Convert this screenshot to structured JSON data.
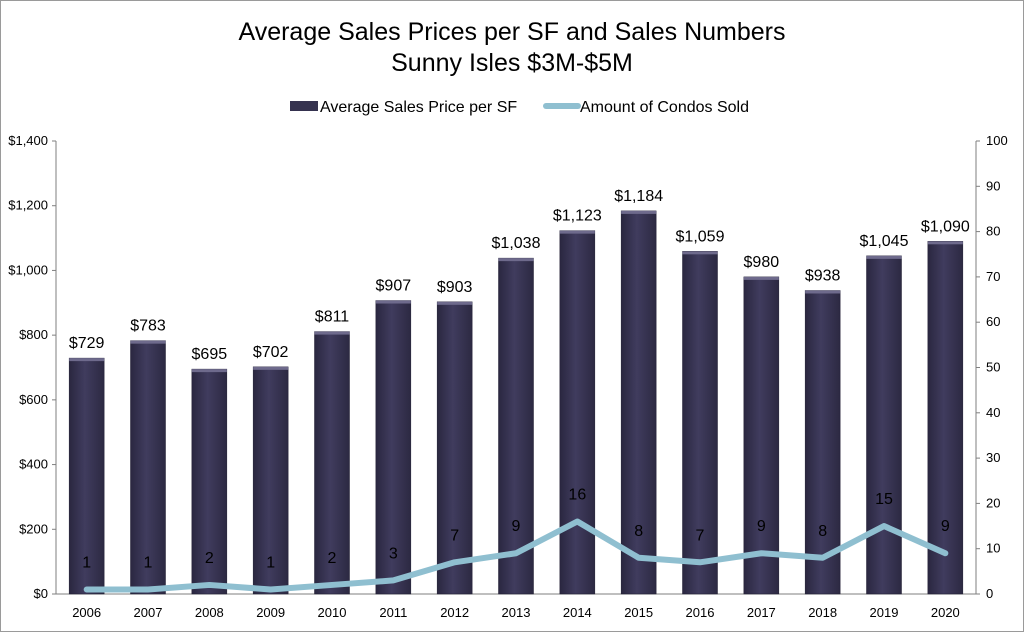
{
  "chart_data": {
    "type": "bar",
    "title": "Average Sales Prices per SF and Sales Numbers",
    "subtitle": "Sunny Isles $3M-$5M",
    "categories": [
      "2006",
      "2007",
      "2008",
      "2009",
      "2010",
      "2011",
      "2012",
      "2013",
      "2014",
      "2015",
      "2016",
      "2017",
      "2018",
      "2019",
      "2020"
    ],
    "series": [
      {
        "name": "Average Sales Price per SF",
        "type": "bar",
        "axis": "left",
        "color": "#35324f",
        "values": [
          729,
          783,
          695,
          702,
          811,
          907,
          903,
          1038,
          1123,
          1184,
          1059,
          980,
          938,
          1045,
          1090
        ],
        "labels": [
          "$729",
          "$783",
          "$695",
          "$702",
          "$811",
          "$907",
          "$903",
          "$1,038",
          "$1,123",
          "$1,184",
          "$1,059",
          "$980",
          "$938",
          "$1,045",
          "$1,090"
        ]
      },
      {
        "name": "Amount of Condos Sold",
        "type": "line",
        "axis": "right",
        "color": "#8fbfd0",
        "values": [
          1,
          1,
          2,
          1,
          2,
          3,
          7,
          9,
          16,
          8,
          7,
          9,
          8,
          15,
          9
        ],
        "labels": [
          "1",
          "1",
          "2",
          "1",
          "2",
          "3",
          "7",
          "9",
          "16",
          "8",
          "7",
          "9",
          "8",
          "15",
          "9"
        ]
      }
    ],
    "y_left": {
      "min": 0,
      "max": 1400,
      "ticks": [
        0,
        200,
        400,
        600,
        800,
        1000,
        1200,
        1400
      ],
      "tick_labels": [
        "$0",
        "$200",
        "$400",
        "$600",
        "$800",
        "$1,000",
        "$1,200",
        "$1,400"
      ]
    },
    "y_right": {
      "min": 0,
      "max": 100,
      "ticks": [
        0,
        10,
        20,
        30,
        40,
        50,
        60,
        70,
        80,
        90,
        100
      ],
      "tick_labels": [
        "0",
        "10",
        "20",
        "30",
        "40",
        "50",
        "60",
        "70",
        "80",
        "90",
        "100"
      ]
    },
    "legend_position": "top-center",
    "grid": false
  }
}
